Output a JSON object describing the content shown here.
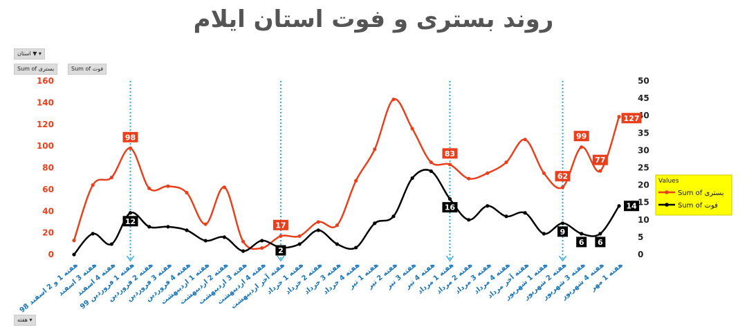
{
  "title": "روند بستری و فوت استان ایلام",
  "filter_button": {
    "label": "استان",
    "icon": "filter-icon"
  },
  "field_buttons": [
    "Sum of بستری",
    "Sum of فوت"
  ],
  "axis_field_button": {
    "label": "هفته",
    "icon": "dropdown-arrow-icon"
  },
  "colors": {
    "hospitalized": "#e8401c",
    "deaths": "#000000",
    "marker_line": "#2aa8e0",
    "legend_bg": "#ffff00",
    "left_axis_text": "#e8401c",
    "category_text": "#1a75bb"
  },
  "chart_data": {
    "type": "line",
    "categories": [
      "هفته 1 و 2 اسفند 98",
      "هفته 3 اسفند",
      "هفته 4 اسفند",
      "هفته 1 فروردین 99",
      "هفته 2 فروردین",
      "هفته 3 فروردین",
      "هفته 4 فروردین",
      "هفته 1 اردیبهشت",
      "هفته 2 اردیبهشت",
      "هفته 3 اردیبهشت",
      "هفته 4 اردیبهشت",
      "هفته آخر اردیبهشت",
      "هفته 1 خرداد",
      "هفته 2 خرداد",
      "هفته 3 خرداد",
      "هفته 4 خرداد",
      "هفته 1 تیر",
      "هفته 2 تیر",
      "هفته 3 تیر",
      "هفته 4 تیر",
      "هفته 1 مرداد",
      "هفته 2 مرداد",
      "هفته 3 مرداد",
      "هفته 4 مرداد",
      "هفته آخر مرداد",
      "هفته 1 شهریور",
      "هفته 2 شهریور",
      "هفته 3 شهریور",
      "هفته 4 شهریور",
      "هفته 1 مهر"
    ],
    "series": [
      {
        "name": "Sum of بستری",
        "axis": "left",
        "color": "#e8401c",
        "values": [
          13,
          64,
          71,
          98,
          61,
          63,
          57,
          28,
          62,
          12,
          6,
          17,
          17,
          30,
          27,
          68,
          97,
          143,
          116,
          85,
          83,
          70,
          75,
          85,
          106,
          75,
          62,
          99,
          77,
          127
        ]
      },
      {
        "name": "Sum of فوت",
        "axis": "right",
        "color": "#000000",
        "values": [
          0,
          6,
          3,
          12,
          8,
          8,
          7,
          4,
          5,
          1,
          4,
          2,
          3,
          7,
          3,
          2,
          9,
          11,
          22,
          24,
          16,
          10,
          14,
          11,
          12,
          6,
          9,
          6,
          6,
          14
        ]
      }
    ],
    "labels": {
      "Sum of بستری": [
        {
          "index": 3,
          "text": "98"
        },
        {
          "index": 11,
          "text": "17"
        },
        {
          "index": 20,
          "text": "83"
        },
        {
          "index": 26,
          "text": "62"
        },
        {
          "index": 27,
          "text": "99"
        },
        {
          "index": 28,
          "text": "77"
        },
        {
          "index": 29,
          "text": "127"
        }
      ],
      "Sum of فوت": [
        {
          "index": 3,
          "text": "12"
        },
        {
          "index": 11,
          "text": "2"
        },
        {
          "index": 20,
          "text": "16"
        },
        {
          "index": 26,
          "text": "9"
        },
        {
          "index": 27,
          "text": "6"
        },
        {
          "index": 28,
          "text": "6"
        },
        {
          "index": 29,
          "text": "14"
        }
      ]
    },
    "marker_indices": [
      3,
      11,
      20,
      26
    ],
    "left_axis": {
      "min": 0,
      "max": 160,
      "ticks": [
        "0",
        "20",
        "40",
        "60",
        "80",
        "100",
        "120",
        "140",
        "160"
      ]
    },
    "right_axis": {
      "min": 0,
      "max": 50,
      "ticks": [
        "0",
        "5",
        "10",
        "15",
        "20",
        "25",
        "30",
        "35",
        "40",
        "45",
        "50"
      ]
    },
    "legend": {
      "title": "Values",
      "position": "right",
      "entries": [
        "Sum of بستری",
        "Sum of فوت"
      ]
    },
    "grid": false
  }
}
